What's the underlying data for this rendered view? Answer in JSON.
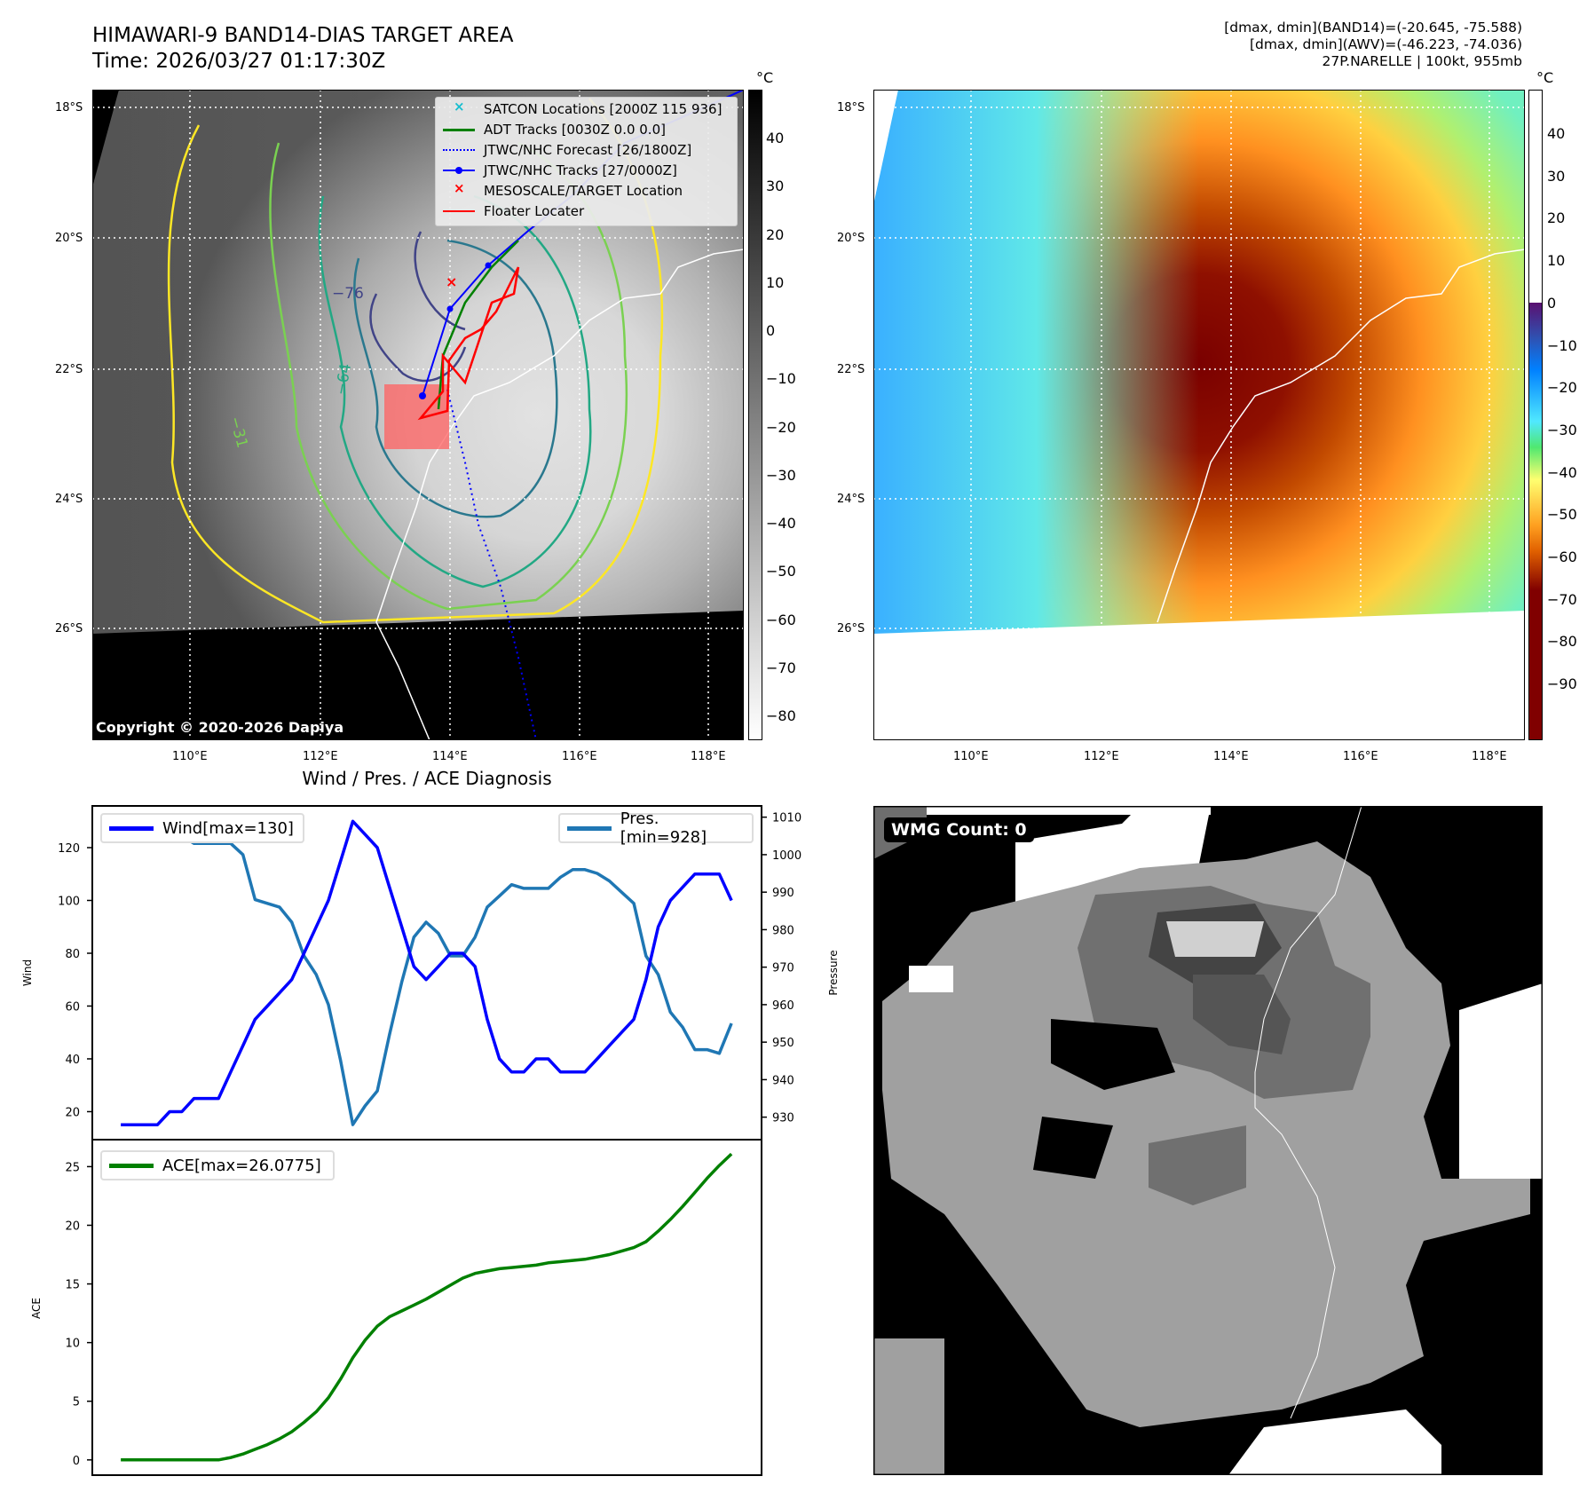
{
  "header": {
    "title_line1": "HIMAWARI-9 BAND14-DIAS TARGET AREA",
    "title_line2": "Time: 2026/03/27 01:17:30Z",
    "info_line1": "[dmax, dmin](BAND14)=(-20.645, -75.588)",
    "info_line2": "[dmax, dmin](AWV)=(-46.223, -74.036)",
    "info_line3": "27P.NARELLE | 100kt, 955mb"
  },
  "maps": {
    "lat_labels": [
      "18°S",
      "20°S",
      "22°S",
      "24°S",
      "26°S"
    ],
    "lon_labels": [
      "110°E",
      "112°E",
      "114°E",
      "116°E",
      "118°E"
    ],
    "unit": "°C",
    "left_colorbar_ticks": [
      "40",
      "30",
      "20",
      "10",
      "0",
      "−10",
      "−20",
      "−30",
      "−40",
      "−50",
      "−60",
      "−70",
      "−80"
    ],
    "right_colorbar_ticks": [
      "40",
      "30",
      "20",
      "10",
      "0",
      "−10",
      "−20",
      "−30",
      "−40",
      "−50",
      "−60",
      "−70",
      "−80",
      "−90"
    ],
    "contour_labels": [
      "−76",
      "−64",
      "−31"
    ],
    "copyright": "Copyright © 2020-2026 Dapiya",
    "legend": [
      {
        "label": "SATCON Locations [2000Z 115 936]",
        "color": "#17becf"
      },
      {
        "label": "ADT Tracks [0030Z 0.0 0.0]",
        "color": "#008000"
      },
      {
        "label": "JTWC/NHC Forecast [26/1800Z]",
        "color": "#0000ff"
      },
      {
        "label": "JTWC/NHC Tracks [27/0000Z]",
        "color": "#0000ff"
      },
      {
        "label": "MESOSCALE/TARGET Location",
        "color": "#ff0000"
      },
      {
        "label": "Floater Locater",
        "color": "#ff0000"
      }
    ],
    "wmg_label": "WMG Count: 0"
  },
  "chart_data": [
    {
      "type": "line",
      "title": "Wind / Pres. / ACE Diagnosis",
      "x": [
        0,
        1,
        2,
        3,
        4,
        5,
        6,
        7,
        8,
        9,
        10,
        11,
        12,
        13,
        14,
        15,
        16,
        17,
        18,
        19,
        20,
        21,
        22,
        23,
        24,
        25,
        26,
        27,
        28,
        29,
        30,
        31,
        32,
        33,
        34,
        35,
        36,
        37,
        38,
        39,
        40,
        41,
        42,
        43,
        44,
        45,
        46,
        47,
        48,
        49,
        50
      ],
      "ylabel": "Wind",
      "y2label": "Pressure",
      "ylim": [
        9.4,
        135.8
      ],
      "y2lim": [
        924,
        1013
      ],
      "xlim": [
        -2.33,
        52.46
      ],
      "yticks": [
        "20",
        "40",
        "60",
        "80",
        "100",
        "120"
      ],
      "y2ticks": [
        "930",
        "940",
        "950",
        "960",
        "970",
        "980",
        "990",
        "1000",
        "1010"
      ],
      "series": [
        {
          "name": "Wind[max=130]",
          "axis": "left",
          "color": "#0000ff",
          "values": [
            15,
            15,
            15,
            15,
            20,
            20,
            25,
            25,
            25,
            35,
            45,
            55,
            60,
            65,
            70,
            80,
            90,
            100,
            115,
            130,
            125,
            120,
            105,
            90,
            75,
            70,
            75,
            80,
            80,
            75,
            55,
            40,
            35,
            35,
            40,
            40,
            35,
            35,
            35,
            40,
            45,
            50,
            55,
            70,
            90,
            100,
            105,
            110,
            110,
            110,
            100
          ]
        },
        {
          "name": "Pres.[min=928]",
          "axis": "right",
          "color": "#1f77b4",
          "values": [
            1010,
            1010,
            1010,
            1005,
            1006,
            1005,
            1003,
            1003,
            1003,
            1003,
            1000,
            988,
            987,
            986,
            982,
            973,
            968,
            960,
            945,
            928,
            933,
            937,
            952,
            966,
            978,
            982,
            979,
            973,
            973,
            978,
            986,
            989,
            992,
            991,
            991,
            991,
            994,
            996,
            996,
            995,
            993,
            990,
            987,
            973,
            968,
            958,
            954,
            948,
            948,
            947,
            955
          ]
        }
      ],
      "legend": "top-left / top-right"
    },
    {
      "type": "line",
      "ylabel": "ACE",
      "ylim": [
        -1.3,
        27.3
      ],
      "xlim": [
        -2.33,
        52.46
      ],
      "yticks": [
        "0",
        "5",
        "10",
        "15",
        "20",
        "25"
      ],
      "series": [
        {
          "name": "ACE[max=26.0775]",
          "color": "#008000",
          "values": [
            0,
            0,
            0,
            0,
            0,
            0,
            0,
            0,
            0,
            0.2,
            0.5,
            0.9,
            1.3,
            1.8,
            2.4,
            3.2,
            4.1,
            5.3,
            6.9,
            8.7,
            10.2,
            11.4,
            12.2,
            12.7,
            13.2,
            13.7,
            14.3,
            14.9,
            15.5,
            15.9,
            16.1,
            16.3,
            16.4,
            16.5,
            16.6,
            16.8,
            16.9,
            17.0,
            17.1,
            17.3,
            17.5,
            17.8,
            18.1,
            18.6,
            19.5,
            20.5,
            21.6,
            22.8,
            24.0,
            25.1,
            26.08
          ]
        }
      ],
      "legend": "top-left"
    }
  ]
}
